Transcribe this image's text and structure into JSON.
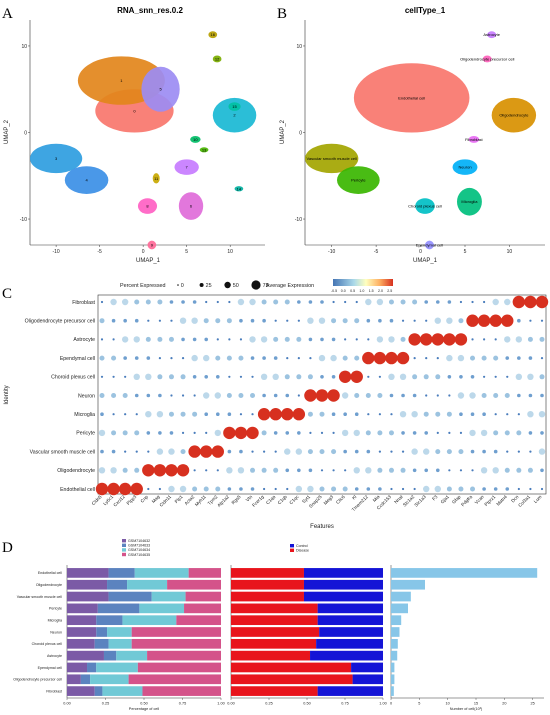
{
  "panel_letters": [
    "A",
    "B",
    "C",
    "D"
  ],
  "chart_data": [
    {
      "type": "scatter",
      "title": "RNA_snn_res.0.2",
      "xlabel": "UMAP_1",
      "ylabel": "UMAP_2",
      "xlim": [
        -13,
        14
      ],
      "ylim": [
        -13,
        13
      ],
      "xticks": [
        "-10",
        "-5",
        "0",
        "5",
        "10"
      ],
      "yticks": [
        "10",
        "0",
        "-10"
      ],
      "clusters": [
        {
          "label": "0",
          "x": -1,
          "y": 2.5,
          "rx": 4.5,
          "ry": 2.5,
          "color": "#f8766d"
        },
        {
          "label": "1",
          "x": -2.5,
          "y": 6,
          "rx": 5,
          "ry": 2.8,
          "color": "#e2861b"
        },
        {
          "label": "2",
          "x": 10.5,
          "y": 2,
          "rx": 2.5,
          "ry": 2,
          "color": "#19b9d4"
        },
        {
          "label": "3",
          "x": -10,
          "y": -3,
          "rx": 3,
          "ry": 1.7,
          "color": "#2e9de0"
        },
        {
          "label": "4",
          "x": -6.5,
          "y": -5.5,
          "rx": 2.5,
          "ry": 1.6,
          "color": "#3b8fe6"
        },
        {
          "label": "5",
          "x": 2,
          "y": 5,
          "rx": 2.2,
          "ry": 2.6,
          "color": "#9c8cf3"
        },
        {
          "label": "6",
          "x": 5.5,
          "y": -8.5,
          "rx": 1.4,
          "ry": 1.6,
          "color": "#e06bd9"
        },
        {
          "label": "7",
          "x": 5,
          "y": -4,
          "rx": 1.4,
          "ry": 0.9,
          "color": "#c77cff"
        },
        {
          "label": "8",
          "x": 0.5,
          "y": -8.5,
          "rx": 1.1,
          "ry": 0.9,
          "color": "#ff61c3"
        },
        {
          "label": "9",
          "x": 1,
          "y": -13,
          "rx": 0.5,
          "ry": 0.5,
          "color": "#ff6a98"
        },
        {
          "label": "10",
          "x": 6,
          "y": -0.8,
          "rx": 0.6,
          "ry": 0.4,
          "color": "#00be67"
        },
        {
          "label": "11",
          "x": 1.5,
          "y": -5.3,
          "rx": 0.4,
          "ry": 0.6,
          "color": "#c8a800"
        },
        {
          "label": "12",
          "x": 8.5,
          "y": 8.5,
          "rx": 0.5,
          "ry": 0.4,
          "color": "#7cae00"
        },
        {
          "label": "13",
          "x": 7,
          "y": -2,
          "rx": 0.5,
          "ry": 0.3,
          "color": "#49b500"
        },
        {
          "label": "14",
          "x": 11,
          "y": -6.5,
          "rx": 0.5,
          "ry": 0.3,
          "color": "#00b0a0"
        },
        {
          "label": "15",
          "x": 10.5,
          "y": 3,
          "rx": 0.7,
          "ry": 0.5,
          "color": "#00c1a3"
        },
        {
          "label": "16",
          "x": 8,
          "y": 11.3,
          "rx": 0.5,
          "ry": 0.4,
          "color": "#b79f00"
        }
      ]
    },
    {
      "type": "scatter",
      "title": "cellType_1",
      "xlabel": "UMAP_1",
      "ylabel": "UMAP_2",
      "xlim": [
        -13,
        14
      ],
      "ylim": [
        -13,
        13
      ],
      "xticks": [
        "-10",
        "-5",
        "0",
        "5",
        "10"
      ],
      "yticks": [
        "10",
        "0",
        "-10"
      ],
      "clusters": [
        {
          "label": "Endothelial cell",
          "x": -1,
          "y": 4,
          "rx": 6.5,
          "ry": 4,
          "color": "#f8766d"
        },
        {
          "label": "Oligodendrocyte",
          "x": 10.5,
          "y": 2,
          "rx": 2.5,
          "ry": 2,
          "color": "#d89000"
        },
        {
          "label": "Vascular smooth muscle cell",
          "x": -10,
          "y": -3,
          "rx": 3,
          "ry": 1.7,
          "color": "#a3a500"
        },
        {
          "label": "Pericyte",
          "x": -7,
          "y": -5.5,
          "rx": 2.4,
          "ry": 1.6,
          "color": "#39b600"
        },
        {
          "label": "Choroid plexus cell",
          "x": 0.5,
          "y": -8.5,
          "rx": 1.1,
          "ry": 0.9,
          "color": "#00bfc4"
        },
        {
          "label": "Microglia",
          "x": 5.5,
          "y": -8,
          "rx": 1.4,
          "ry": 1.6,
          "color": "#00bf7d"
        },
        {
          "label": "Neuron",
          "x": 5,
          "y": -4,
          "rx": 1.4,
          "ry": 0.9,
          "color": "#00b0f6"
        },
        {
          "label": "Ependymal cell",
          "x": 1,
          "y": -13,
          "rx": 0.5,
          "ry": 0.5,
          "color": "#9590ff"
        },
        {
          "label": "Fibroblast",
          "x": 6,
          "y": -0.8,
          "rx": 0.6,
          "ry": 0.4,
          "color": "#e76bf3"
        },
        {
          "label": "Oligodendrocyte precursor cell",
          "x": 7.5,
          "y": 8.5,
          "rx": 0.5,
          "ry": 0.4,
          "color": "#ff62bc"
        },
        {
          "label": "Astrocyte",
          "x": 8,
          "y": 11.3,
          "rx": 0.5,
          "ry": 0.4,
          "color": "#c77cff"
        }
      ]
    },
    {
      "type": "scatter",
      "subtype": "dotplot",
      "xlabel": "Features",
      "ylabel": "Identity",
      "size_legend_title": "Percent Expressed",
      "size_legend_values": [
        "0",
        "25",
        "50",
        "75"
      ],
      "color_legend_title": "Average Expression",
      "color_legend_ticks": [
        "-0.5",
        "0.0",
        "0.5",
        "1.0",
        "1.5",
        "2.0",
        "2.5"
      ],
      "rows": [
        "Fibroblast",
        "Oligodendrocyte precursor cell",
        "Astrocyte",
        "Ependymal cell",
        "Choroid plexus cell",
        "Neuron",
        "Microglia",
        "Pericyte",
        "Vascular smooth muscle cell",
        "Oligodendrocyte",
        "Endothelial cell"
      ],
      "features": [
        "Cldn5",
        "Ly6c1",
        "Cxcl12",
        "Plpp3",
        "Cnp",
        "Mag",
        "Cldn11",
        "Plp1",
        "Acta2",
        "Myh11",
        "Tpm2",
        "Atp1a2",
        "Rgs5",
        "Vtn",
        "Fcer1g",
        "C1qa",
        "C1qb",
        "C1qc",
        "Syt1",
        "Snap25",
        "Meg3",
        "Clic6",
        "Kl",
        "Tmem212",
        "Mia",
        "Ccdc153",
        "Nnat",
        "Slc1a2",
        "Slc1a3",
        "F3",
        "Gja1",
        "Gfap",
        "Pdgfra",
        "Vcan",
        "Ptprz1",
        "Matn4",
        "Dcn",
        "Col3a1",
        "Lum"
      ],
      "markers": [
        {
          "row": "Endothelial cell",
          "features": [
            "Cldn5",
            "Ly6c1",
            "Cxcl12",
            "Plpp3"
          ]
        },
        {
          "row": "Oligodendrocyte",
          "features": [
            "Cnp",
            "Mag",
            "Cldn11",
            "Plp1"
          ]
        },
        {
          "row": "Vascular smooth muscle cell",
          "features": [
            "Acta2",
            "Myh11",
            "Tpm2"
          ]
        },
        {
          "row": "Pericyte",
          "features": [
            "Atp1a2",
            "Rgs5",
            "Vtn"
          ]
        },
        {
          "row": "Microglia",
          "features": [
            "Fcer1g",
            "C1qa",
            "C1qb",
            "C1qc"
          ]
        },
        {
          "row": "Neuron",
          "features": [
            "Syt1",
            "Snap25",
            "Meg3"
          ]
        },
        {
          "row": "Choroid plexus cell",
          "features": [
            "Clic6",
            "Kl"
          ]
        },
        {
          "row": "Ependymal cell",
          "features": [
            "Tmem212",
            "Mia",
            "Ccdc153",
            "Nnat"
          ]
        },
        {
          "row": "Astrocyte",
          "features": [
            "Slc1a2",
            "Slc1a3",
            "F3",
            "Gja1",
            "Gfap"
          ]
        },
        {
          "row": "Oligodendrocyte precursor cell",
          "features": [
            "Pdgfra",
            "Vcan",
            "Ptprz1",
            "Matn4"
          ]
        },
        {
          "row": "Fibroblast",
          "features": [
            "Dcn",
            "Col3a1",
            "Lum"
          ]
        }
      ]
    },
    {
      "type": "bar",
      "subtype": "stacked-100",
      "xlabel": "Percentage of cell",
      "xticks": [
        "0.00",
        "0.25",
        "0.50",
        "0.75",
        "1.00"
      ],
      "categories": [
        "Endothelial cell",
        "Oligodendrocyte",
        "Vascular smooth muscle cell",
        "Pericyte",
        "Microglia",
        "Neuron",
        "Choroid plexus cell",
        "Astrocyte",
        "Ependymal cell",
        "Oligodendrocyte precursor cell",
        "Fibroblast"
      ],
      "series": [
        {
          "name": "GSM7104632",
          "color": "#7b5aa6",
          "values": [
            0.27,
            0.26,
            0.27,
            0.2,
            0.19,
            0.19,
            0.18,
            0.24,
            0.13,
            0.09,
            0.18
          ]
        },
        {
          "name": "GSM7104633",
          "color": "#5b83bf",
          "values": [
            0.17,
            0.13,
            0.28,
            0.27,
            0.17,
            0.07,
            0.09,
            0.08,
            0.06,
            0.06,
            0.05
          ]
        },
        {
          "name": "GSM7104634",
          "color": "#71c9d6",
          "values": [
            0.35,
            0.26,
            0.22,
            0.29,
            0.35,
            0.16,
            0.15,
            0.2,
            0.27,
            0.25,
            0.26
          ]
        },
        {
          "name": "GSM7104635",
          "color": "#d4538a",
          "values": [
            0.21,
            0.35,
            0.23,
            0.24,
            0.29,
            0.58,
            0.58,
            0.48,
            0.54,
            0.6,
            0.51
          ]
        }
      ]
    },
    {
      "type": "bar",
      "subtype": "stacked-100",
      "xticks": [
        "0.00",
        "0.25",
        "0.50",
        "0.75",
        "1.00"
      ],
      "categories": [
        "Endothelial cell",
        "Oligodendrocyte",
        "Vascular smooth muscle cell",
        "Pericyte",
        "Microglia",
        "Neuron",
        "Choroid plexus cell",
        "Astrocyte",
        "Ependymal cell",
        "Oligodendrocyte precursor cell",
        "Fibroblast"
      ],
      "series": [
        {
          "name": "Disease",
          "color": "#e8141c",
          "values": [
            0.48,
            0.48,
            0.48,
            0.57,
            0.57,
            0.58,
            0.56,
            0.52,
            0.79,
            0.8,
            0.57
          ]
        },
        {
          "name": "Control",
          "color": "#1414d6",
          "values": [
            0.52,
            0.52,
            0.52,
            0.43,
            0.43,
            0.42,
            0.44,
            0.48,
            0.21,
            0.2,
            0.43
          ]
        }
      ]
    },
    {
      "type": "bar",
      "xlabel": "Number of cell(10³)",
      "xticks": [
        "0",
        "5",
        "10",
        "15",
        "20",
        "25"
      ],
      "xlim": [
        0,
        27
      ],
      "color": "#87c6e8",
      "categories": [
        "Endothelial cell",
        "Oligodendrocyte",
        "Vascular smooth muscle cell",
        "Pericyte",
        "Microglia",
        "Neuron",
        "Choroid plexus cell",
        "Astrocyte",
        "Ependymal cell",
        "Oligodendrocyte precursor cell",
        "Fibroblast"
      ],
      "values": [
        25.8,
        6.0,
        3.5,
        3.0,
        1.8,
        1.5,
        1.2,
        1.1,
        0.6,
        0.6,
        0.5
      ]
    }
  ]
}
